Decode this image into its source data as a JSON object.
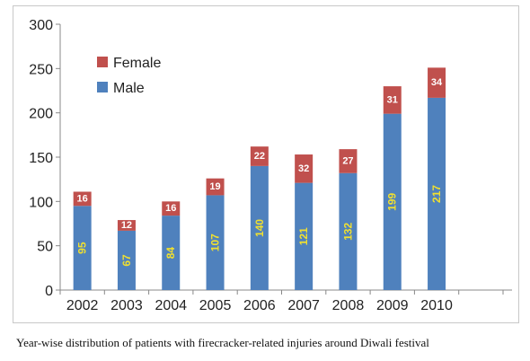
{
  "chart_data": {
    "type": "bar",
    "stacked": true,
    "categories": [
      "2002",
      "2003",
      "2004",
      "2005",
      "2006",
      "2007",
      "2008",
      "2009",
      "2010"
    ],
    "series": [
      {
        "name": "Male",
        "values": [
          95,
          67,
          84,
          107,
          140,
          121,
          132,
          199,
          217
        ],
        "color": "#4f81bd"
      },
      {
        "name": "Female",
        "values": [
          16,
          12,
          16,
          19,
          22,
          32,
          27,
          31,
          34
        ],
        "color": "#c0504d"
      }
    ],
    "ylim": [
      0,
      300
    ],
    "yticks": [
      "0",
      "50",
      "100",
      "150",
      "200",
      "250",
      "300"
    ],
    "legend": "top-left",
    "grid": false
  },
  "caption": "Year-wise distribution of patients with firecracker-related injuries around Diwali festival"
}
